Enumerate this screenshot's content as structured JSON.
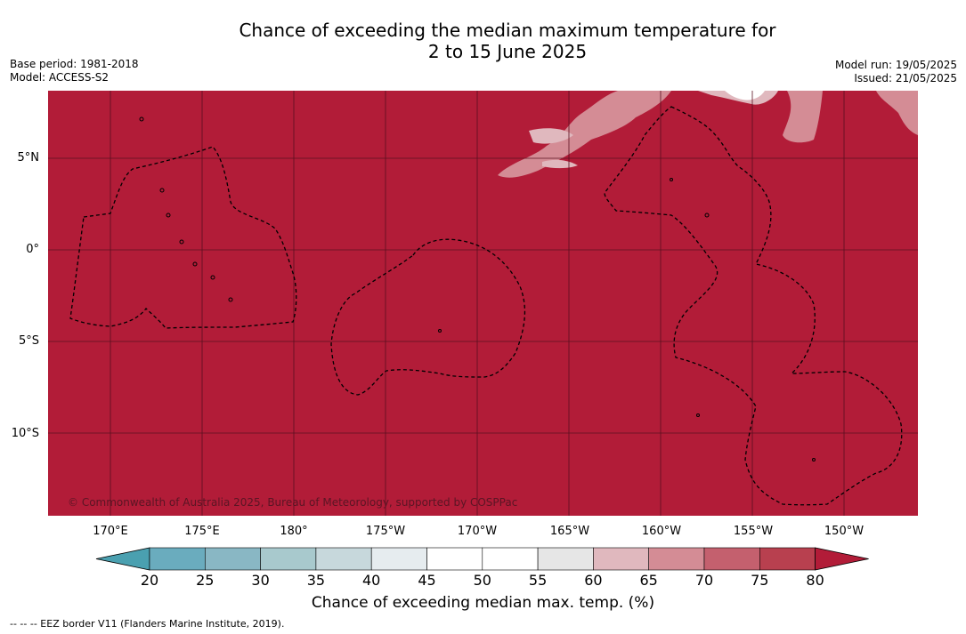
{
  "title": {
    "line1": "Chance of exceeding the median maximum temperature for",
    "line2": "2 to 15 June 2025"
  },
  "meta_left": {
    "base_period": "Base period: 1981-2018",
    "model": "Model: ACCESS-S2"
  },
  "meta_right": {
    "model_run": "Model run: 19/05/2025",
    "issued": "Issued: 21/05/2025"
  },
  "map": {
    "latitude_labels": [
      "5°N",
      "0°",
      "5°S",
      "10°S"
    ],
    "longitude_labels": [
      "170°E",
      "175°E",
      "180°",
      "175°W",
      "170°W",
      "165°W",
      "160°W",
      "155°W",
      "150°W"
    ],
    "copyright": "© Commonwealth of Australia 2025, Bureau of Meteorology, supported by COSPPac",
    "base_color": "#b21c38",
    "grid_color": "#5a1020",
    "eez_color": "#000000"
  },
  "colorbar": {
    "ticks": [
      "20",
      "25",
      "30",
      "35",
      "40",
      "45",
      "50",
      "55",
      "60",
      "65",
      "70",
      "75",
      "80"
    ],
    "colors": [
      "#4aa0b0",
      "#6aacbe",
      "#89b7c4",
      "#a8c9cd",
      "#c7d8dc",
      "#e6ecef",
      "#ffffff",
      "#ffffff",
      "#e6e6e6",
      "#e0b8be",
      "#d48c95",
      "#c4606e",
      "#b8404f",
      "#b21c38"
    ],
    "label": "Chance of exceeding median max. temp. (%)"
  },
  "footer": "--  --  -- EEZ border V11 (Flanders Marine Institute, 2019)."
}
